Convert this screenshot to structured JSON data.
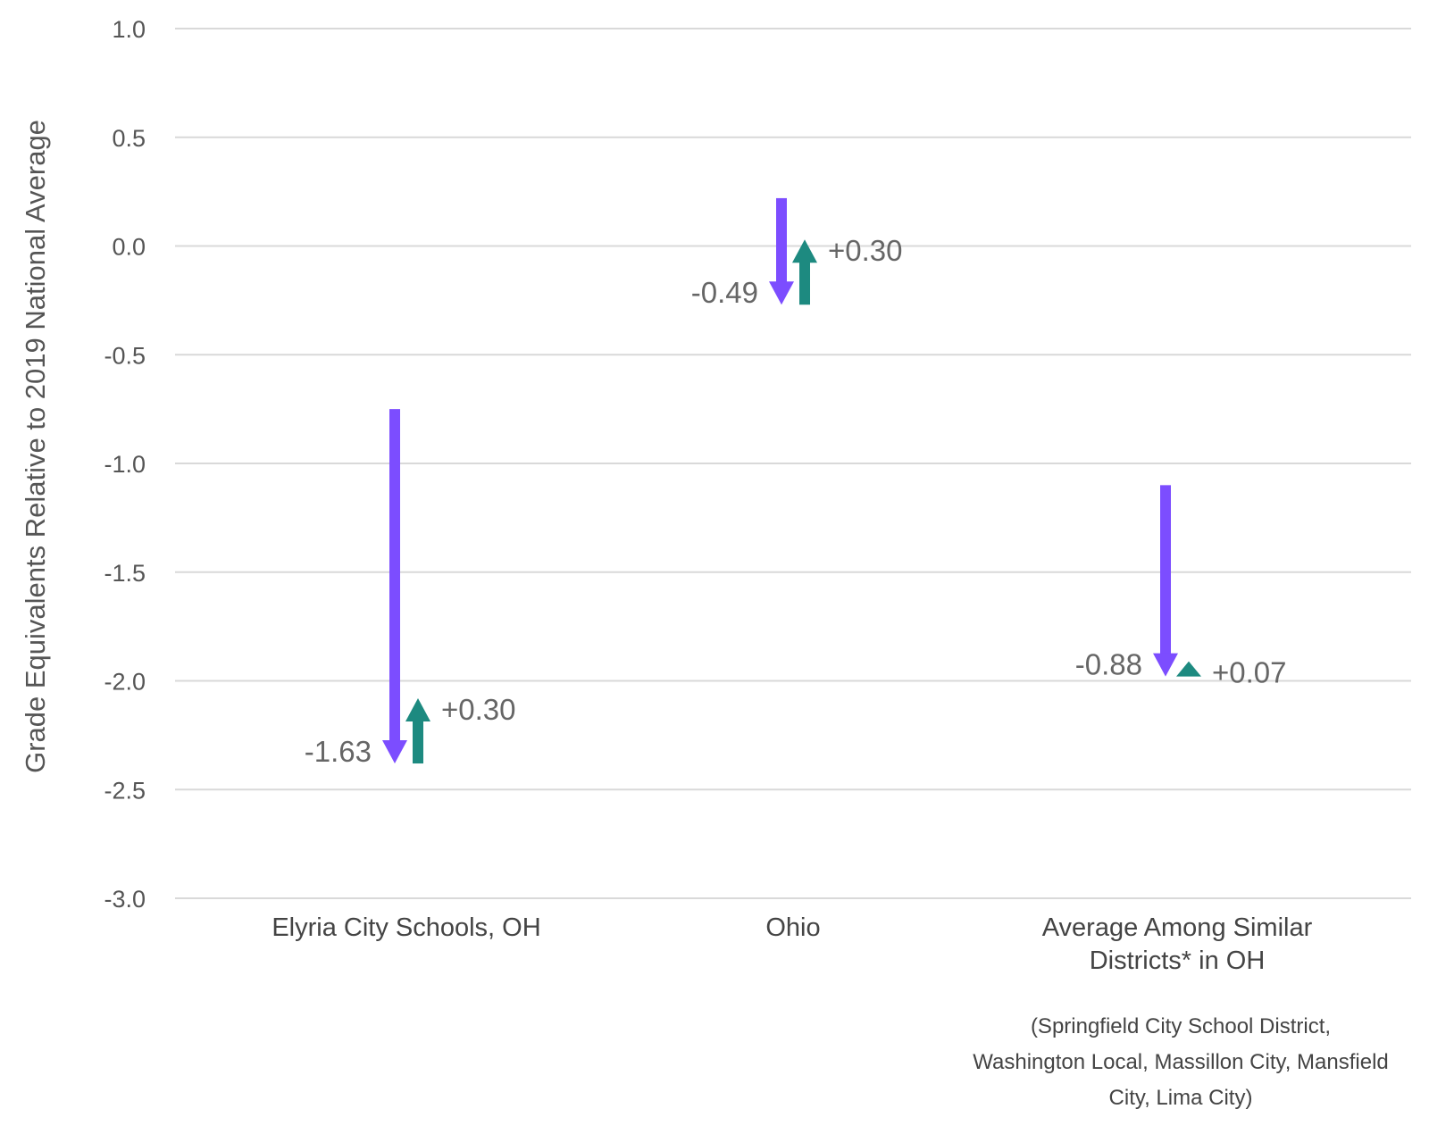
{
  "chart_data": {
    "type": "arrow-change",
    "ylabel": "Grade Equivalents Relative to 2019 National Average",
    "ylim": [
      -3.0,
      1.0
    ],
    "yticks": [
      "1.0",
      "0.5",
      "0.0",
      "-0.5",
      "-1.0",
      "-1.5",
      "-2.0",
      "-2.5",
      "-3.0"
    ],
    "grid": true,
    "colors": {
      "decline": "#7c4dff",
      "recovery": "#1d8a80"
    },
    "categories": [
      {
        "label_lines": [
          "Elyria City Schools, OH"
        ],
        "decline": {
          "from": -0.75,
          "to": -2.38,
          "label": "-1.63"
        },
        "recovery": {
          "from": -2.38,
          "to": -2.08,
          "label": "+0.30"
        }
      },
      {
        "label_lines": [
          "Ohio"
        ],
        "decline": {
          "from": 0.22,
          "to": -0.27,
          "label": "-0.49"
        },
        "recovery": {
          "from": -0.27,
          "to": 0.03,
          "label": "+0.30"
        }
      },
      {
        "label_lines": [
          "Average Among Similar",
          "Districts* in OH"
        ],
        "decline": {
          "from": -1.1,
          "to": -1.98,
          "label": "-0.88"
        },
        "recovery": {
          "from": -1.98,
          "to": -1.91,
          "label": "+0.07"
        }
      }
    ],
    "footnote_lines": [
      "(Springfield City School District,",
      "Washington Local, Massillon City, Mansfield",
      "City, Lima City)"
    ]
  }
}
